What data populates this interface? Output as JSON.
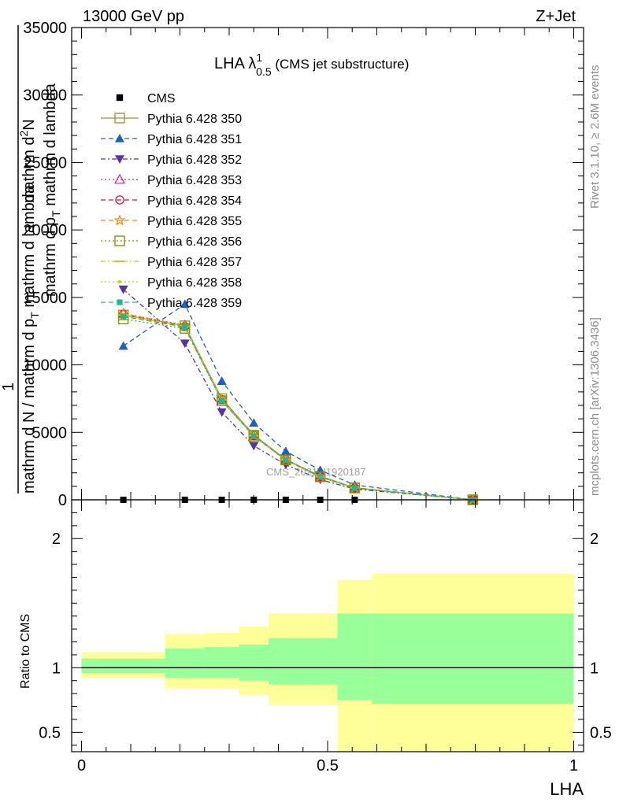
{
  "header": {
    "left": "13000 GeV pp",
    "right": "Z+Jet"
  },
  "side_labels": {
    "rivet": "Rivet 3.1.10, ≥ 2.6M events",
    "mcplots": "mcplots.cern.ch [arXiv:1306.3436]"
  },
  "plot_title": {
    "main": "LHA λ",
    "sup": "1",
    "sub": "0.5",
    "suffix": " (CMS jet substructure)"
  },
  "watermark": "CMS_2021_I1920187",
  "ylabel_top": {
    "line1": "mathrm d",
    "line1_sup": "2",
    "line1_rest": "N",
    "line2": "1",
    "line3": "mathrm d N / mathrm d p",
    "line3_sub": "T",
    "line3_rest": " mathrm d lambda",
    "line4": "mathrm d p",
    "line4_sub": "T",
    "line4_rest": " mathrm d lambda"
  },
  "ylabel_ratio": "Ratio to CMS",
  "xlabel": "LHA",
  "colors": {
    "band_outer": "#ffff99",
    "band_inner": "#99ff99",
    "grid": "#000000"
  },
  "chart_data": {
    "type": "line",
    "xlim": [
      -0.02,
      1.02
    ],
    "ylim": [
      0,
      35000
    ],
    "yticks": [
      0,
      5000,
      10000,
      15000,
      20000,
      25000,
      30000,
      35000
    ],
    "ytick_labels": [
      "0",
      "5000",
      "10000",
      "15000",
      "20000",
      "25000",
      "30000",
      "35000"
    ],
    "ratio_ylim": [
      0.35,
      2.3
    ],
    "ratio_yticks": [
      0.5,
      1,
      2
    ],
    "ratio_ytick_labels": [
      "0.5",
      "1",
      "2"
    ],
    "xticks": [
      0,
      0.5,
      1
    ],
    "xtick_labels": [
      "0",
      "0.5",
      "1"
    ],
    "legend_position": "top-left",
    "x": [
      0.085,
      0.21,
      0.285,
      0.35,
      0.415,
      0.485,
      0.555,
      0.795
    ],
    "data": {
      "name": "CMS",
      "values": [
        0,
        0,
        0,
        0,
        0,
        0,
        0,
        0
      ]
    },
    "series": [
      {
        "name": "Pythia 6.428 350",
        "color": "#9a9a30",
        "dash": "",
        "marker": "open-square",
        "values": [
          13700,
          12900,
          7500,
          4800,
          3000,
          1750,
          900,
          0
        ]
      },
      {
        "name": "Pythia 6.428 351",
        "color": "#1f5fbf",
        "dash": "6,4",
        "marker": "filled-triangle-up",
        "values": [
          11400,
          14500,
          8800,
          5700,
          3600,
          2200,
          1100,
          0
        ]
      },
      {
        "name": "Pythia 6.428 352",
        "color": "#5a32a8",
        "dash": "6,3,2,3",
        "marker": "filled-triangle-down",
        "values": [
          15600,
          11600,
          6500,
          4000,
          2600,
          1500,
          800,
          0
        ]
      },
      {
        "name": "Pythia 6.428 353",
        "color": "#d0208a",
        "dash": "2,3",
        "marker": "open-triangle-up",
        "values": [
          13800,
          12950,
          7400,
          4750,
          2950,
          1700,
          880,
          0
        ]
      },
      {
        "name": "Pythia 6.428 354",
        "color": "#e0102a",
        "dash": "6,4",
        "marker": "open-circle",
        "values": [
          13750,
          12850,
          7450,
          4780,
          2980,
          1720,
          890,
          0
        ]
      },
      {
        "name": "Pythia 6.428 355",
        "color": "#ff7f0e",
        "dash": "6,4",
        "marker": "open-star",
        "values": [
          13800,
          12900,
          7420,
          4760,
          2970,
          1710,
          885,
          0
        ]
      },
      {
        "name": "Pythia 6.428 356",
        "color": "#7a9a10",
        "dash": "2,3",
        "marker": "open-square",
        "values": [
          13400,
          12700,
          7350,
          4700,
          2950,
          1700,
          870,
          0
        ]
      },
      {
        "name": "Pythia 6.428 357",
        "color": "#d4c010",
        "dash": "6,3,2,3",
        "marker": "dash",
        "values": [
          13700,
          12850,
          7400,
          4740,
          2960,
          1705,
          880,
          0
        ]
      },
      {
        "name": "Pythia 6.428 358",
        "color": "#b8d020",
        "dash": "2,3",
        "marker": "small-dot",
        "values": [
          13650,
          12800,
          7380,
          4730,
          2950,
          1700,
          875,
          0
        ]
      },
      {
        "name": "Pythia 6.428 359",
        "color": "#20b890",
        "dash": "6,4",
        "marker": "filled-square",
        "values": [
          13600,
          12800,
          7350,
          4720,
          2940,
          1695,
          870,
          0
        ]
      }
    ],
    "ratio_bands": [
      {
        "x0": 0.0,
        "x1": 0.17,
        "outer": [
          0.92,
          1.12
        ],
        "inner": [
          0.96,
          1.07
        ]
      },
      {
        "x0": 0.17,
        "x1": 0.25,
        "outer": [
          0.84,
          1.26
        ],
        "inner": [
          0.92,
          1.15
        ]
      },
      {
        "x0": 0.25,
        "x1": 0.32,
        "outer": [
          0.84,
          1.27
        ],
        "inner": [
          0.92,
          1.16
        ]
      },
      {
        "x0": 0.32,
        "x1": 0.38,
        "outer": [
          0.79,
          1.32
        ],
        "inner": [
          0.9,
          1.18
        ]
      },
      {
        "x0": 0.38,
        "x1": 0.52,
        "outer": [
          0.71,
          1.42
        ],
        "inner": [
          0.87,
          1.23
        ]
      },
      {
        "x0": 0.52,
        "x1": 0.59,
        "outer": [
          0.35,
          1.68
        ],
        "inner": [
          0.75,
          1.42
        ]
      },
      {
        "x0": 0.59,
        "x1": 1.0,
        "outer": [
          0.35,
          1.73
        ],
        "inner": [
          0.72,
          1.42
        ]
      }
    ]
  }
}
